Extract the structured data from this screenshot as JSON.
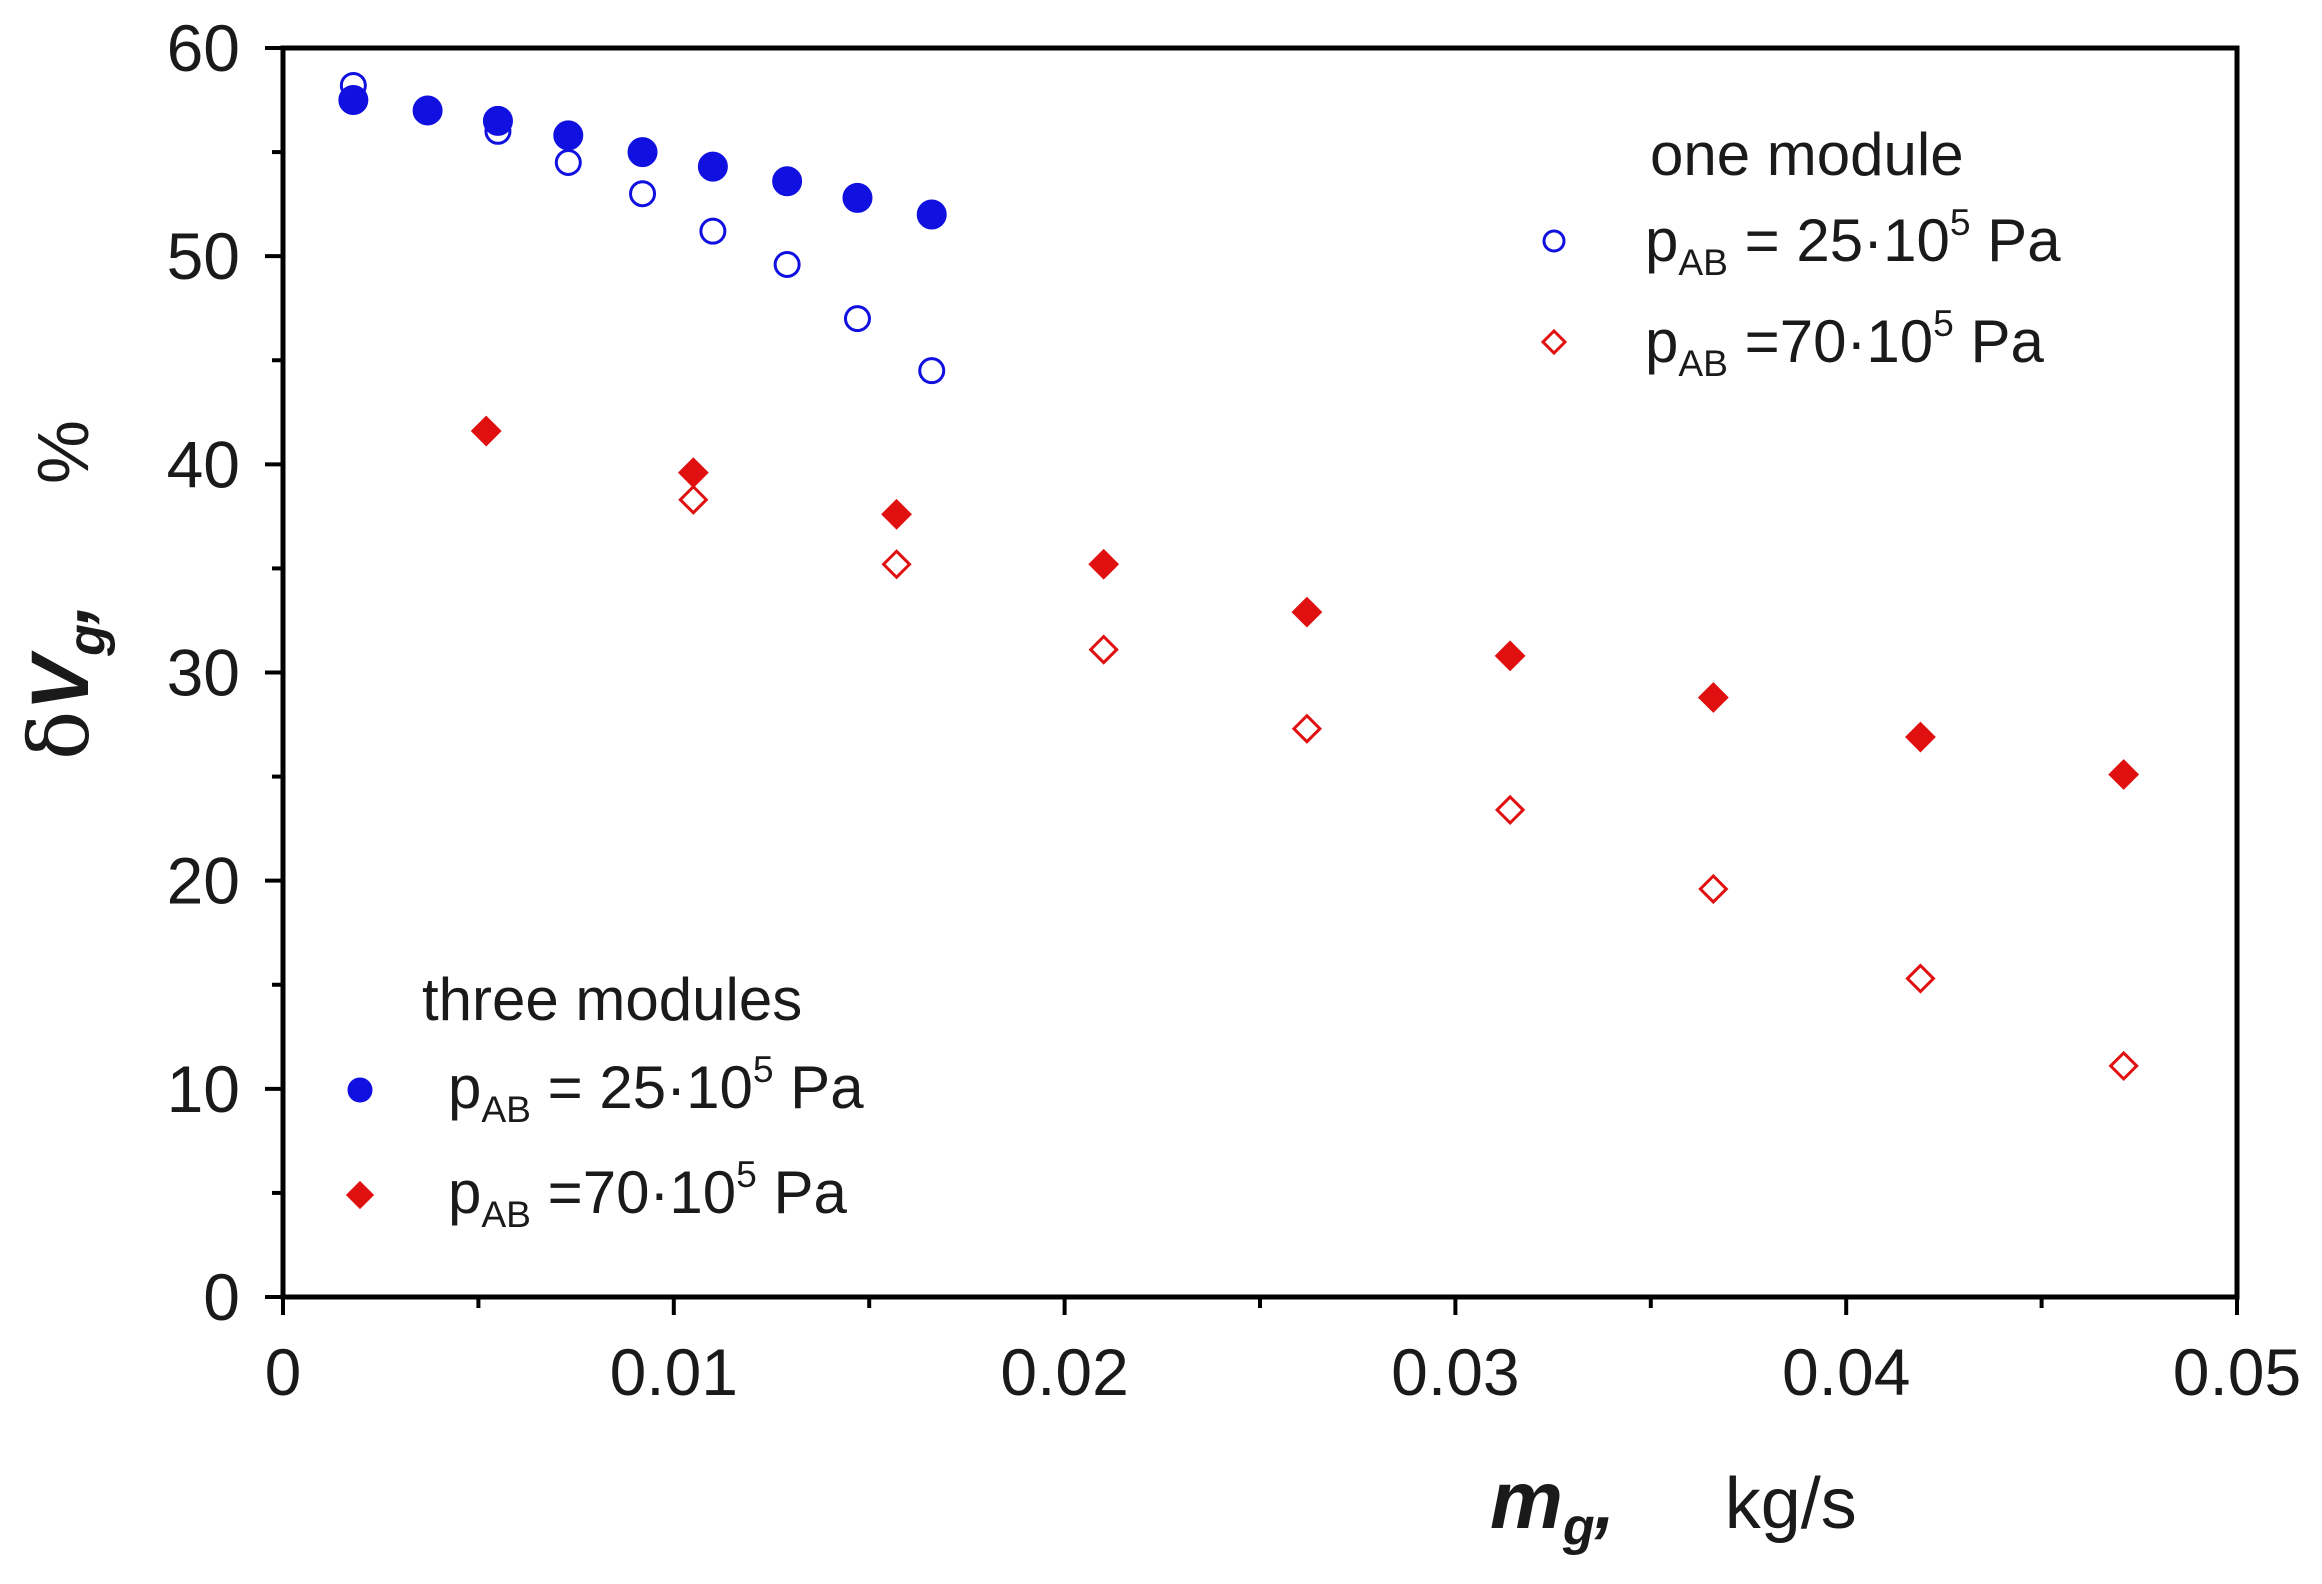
{
  "chart_data": {
    "type": "scatter",
    "xlim": [
      0,
      0.05
    ],
    "ylim": [
      0,
      60
    ],
    "xticks": [
      "0",
      "0.01",
      "0.02",
      "0.03",
      "0.04",
      "0.05"
    ],
    "yticks": [
      "0",
      "10",
      "20",
      "30",
      "40",
      "50",
      "60"
    ],
    "xlabel": {
      "symbol": "m",
      "subscript": "g",
      "suffix": ",",
      "unit": "kg/s"
    },
    "ylabel": {
      "delta": "δ",
      "symbol": "V",
      "subscript": "g",
      "suffix": ",",
      "unit": "%"
    },
    "legend_one": {
      "title": "one module",
      "entries": [
        {
          "p": "p",
          "sub": "AB",
          "rel": " = 25·10",
          "exp": "5",
          "unit": " Pa"
        },
        {
          "p": "p",
          "sub": "AB",
          "rel": " =70·10",
          "exp": "5",
          "unit": " Pa"
        }
      ]
    },
    "legend_three": {
      "title": "three modules",
      "entries": [
        {
          "p": "p",
          "sub": "AB",
          "rel": " = 25·10",
          "exp": "5",
          "unit": " Pa"
        },
        {
          "p": "p",
          "sub": "AB",
          "rel": " =70·10",
          "exp": "5",
          "unit": " Pa"
        }
      ]
    },
    "series": [
      {
        "name": "one module, pAB = 25·10^5 Pa",
        "marker": "open-circle",
        "color": "#1010e0",
        "x": [
          0.0018,
          0.0055,
          0.0073,
          0.0092,
          0.011,
          0.0129,
          0.0147,
          0.0166
        ],
        "y": [
          58.2,
          56.0,
          54.5,
          53.0,
          51.2,
          49.6,
          47.0,
          44.5
        ]
      },
      {
        "name": "three modules, pAB = 25·10^5 Pa",
        "marker": "filled-circle",
        "color": "#1010e0",
        "x": [
          0.0018,
          0.0037,
          0.0055,
          0.0073,
          0.0092,
          0.011,
          0.0129,
          0.0147,
          0.0166
        ],
        "y": [
          57.5,
          57.0,
          56.5,
          55.8,
          55.0,
          54.3,
          53.6,
          52.8,
          52.0
        ]
      },
      {
        "name": "one module, pAB = 70·10^5 Pa",
        "marker": "open-diamond",
        "color": "#e01010",
        "x": [
          0.0052,
          0.0105,
          0.0157,
          0.021,
          0.0262,
          0.0314,
          0.0366,
          0.0419,
          0.0471
        ],
        "y": [
          41.6,
          38.3,
          35.2,
          31.1,
          27.3,
          23.4,
          19.6,
          15.3,
          11.1
        ]
      },
      {
        "name": "three modules, pAB = 70·10^5 Pa",
        "marker": "filled-diamond",
        "color": "#e01010",
        "x": [
          0.0052,
          0.0105,
          0.0157,
          0.021,
          0.0262,
          0.0314,
          0.0366,
          0.0419,
          0.0471
        ],
        "y": [
          41.6,
          39.6,
          37.6,
          35.2,
          32.9,
          30.8,
          28.8,
          26.9,
          25.1
        ]
      }
    ]
  }
}
